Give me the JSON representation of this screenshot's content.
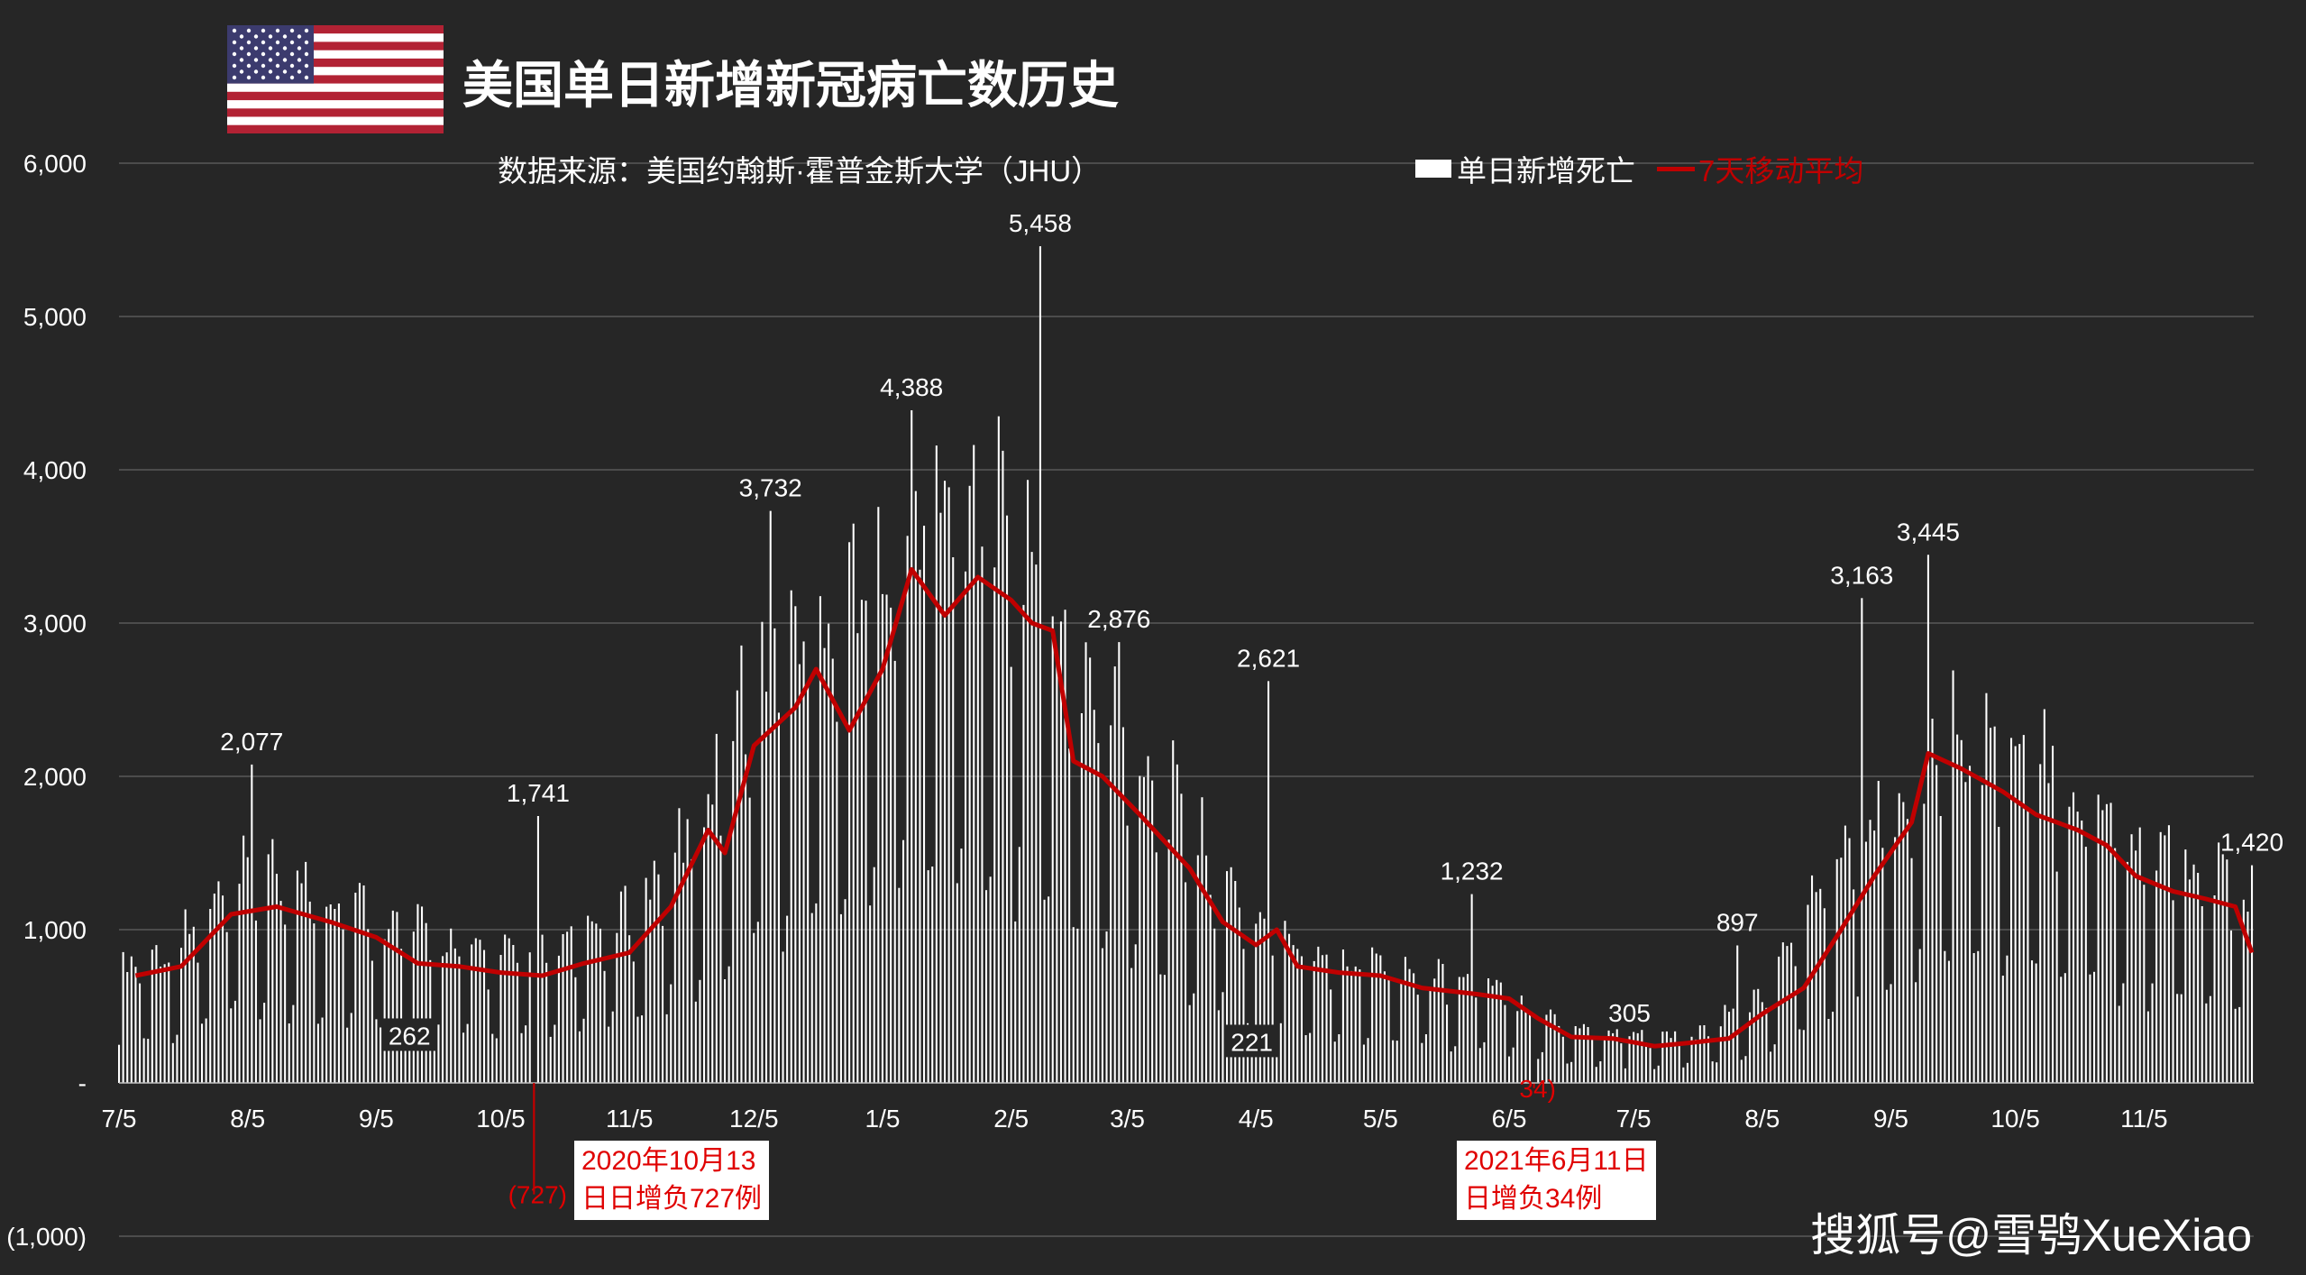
{
  "header": {
    "title": "美国单日新增新冠病亡数历史",
    "source": "数据来源：美国约翰斯·霍普金斯大学（JHU）",
    "flag": "us-flag-icon"
  },
  "legend": {
    "bars_label": "单日新增死亡",
    "line_label": "7天移动平均"
  },
  "callouts": {
    "negative_1": {
      "lines": [
        "2020年10月13",
        "日日增负727例"
      ],
      "value_label": "(727)"
    },
    "negative_2": {
      "lines": [
        "2021年6月11日",
        "日增负34例"
      ],
      "value_label": "34)"
    }
  },
  "watermark": "搜狐号@雪鸮XueXiao",
  "colors": {
    "background": "#262626",
    "bars": "#ffffff",
    "moving_average": "#c00000",
    "grid": "#595959",
    "callout_text": "#e00000"
  },
  "chart_data": {
    "type": "bar",
    "title": "美国单日新增新冠病亡数历史",
    "xlabel": "",
    "ylabel": "",
    "ylim": [
      -1000,
      6000
    ],
    "yticks": [
      -1000,
      0,
      1000,
      2000,
      3000,
      4000,
      5000,
      6000
    ],
    "ytick_labels": [
      "(1,000)",
      "-",
      "1,000",
      "2,000",
      "3,000",
      "4,000",
      "5,000",
      "6,000"
    ],
    "x_range": [
      "2020-07-05",
      "2021-12-01"
    ],
    "xtick_labels": [
      "7/5",
      "8/5",
      "9/5",
      "10/5",
      "11/5",
      "12/5",
      "1/5",
      "2/5",
      "3/5",
      "4/5",
      "5/5",
      "6/5",
      "7/5",
      "8/5",
      "9/5",
      "10/5",
      "11/5"
    ],
    "xtick_dates": [
      "2020-07-05",
      "2020-08-05",
      "2020-09-05",
      "2020-10-05",
      "2020-11-05",
      "2020-12-05",
      "2021-01-05",
      "2021-02-05",
      "2021-03-05",
      "2021-04-05",
      "2021-05-05",
      "2021-06-05",
      "2021-07-05",
      "2021-08-05",
      "2021-09-05",
      "2021-10-05",
      "2021-11-05"
    ],
    "grid": true,
    "legend_position": "top-right",
    "series": [
      {
        "name": "单日新增死亡",
        "kind": "bar",
        "weekly_profile": [
          0.45,
          1.15,
          1.25,
          1.2,
          1.15,
          0.95,
          0.4
        ],
        "trend_points": [
          [
            "2020-07-05",
            650
          ],
          [
            "2020-07-20",
            780
          ],
          [
            "2020-08-05",
            1150
          ],
          [
            "2020-08-20",
            1100
          ],
          [
            "2020-09-05",
            950
          ],
          [
            "2020-09-20",
            800
          ],
          [
            "2020-10-05",
            720
          ],
          [
            "2020-10-20",
            760
          ],
          [
            "2020-11-05",
            950
          ],
          [
            "2020-11-20",
            1400
          ],
          [
            "2020-12-05",
            2300
          ],
          [
            "2020-12-20",
            2600
          ],
          [
            "2021-01-05",
            3000
          ],
          [
            "2021-01-15",
            3350
          ],
          [
            "2021-02-01",
            3200
          ],
          [
            "2021-02-10",
            3000
          ],
          [
            "2021-02-20",
            2300
          ],
          [
            "2021-03-05",
            2000
          ],
          [
            "2021-03-20",
            1400
          ],
          [
            "2021-04-05",
            900
          ],
          [
            "2021-04-20",
            740
          ],
          [
            "2021-05-05",
            680
          ],
          [
            "2021-05-20",
            600
          ],
          [
            "2021-06-05",
            500
          ],
          [
            "2021-06-20",
            320
          ],
          [
            "2021-07-05",
            260
          ],
          [
            "2021-07-20",
            260
          ],
          [
            "2021-08-05",
            480
          ],
          [
            "2021-08-20",
            1100
          ],
          [
            "2021-09-05",
            1600
          ],
          [
            "2021-09-20",
            2050
          ],
          [
            "2021-10-05",
            1800
          ],
          [
            "2021-10-20",
            1650
          ],
          [
            "2021-11-05",
            1350
          ],
          [
            "2021-11-20",
            1200
          ],
          [
            "2021-12-01",
            1000
          ]
        ],
        "labeled_points": [
          {
            "date": "2020-08-06",
            "value": 2077,
            "label": "2,077",
            "pos": "above"
          },
          {
            "date": "2020-09-13",
            "value": 262,
            "label": "262",
            "pos": "box"
          },
          {
            "date": "2020-10-14",
            "value": 1741,
            "label": "1,741",
            "pos": "above"
          },
          {
            "date": "2020-10-13",
            "value": -727,
            "label": "(727)",
            "pos": "below"
          },
          {
            "date": "2020-12-09",
            "value": 3732,
            "label": "3,732",
            "pos": "above"
          },
          {
            "date": "2021-01-12",
            "value": 4388,
            "label": "4,388",
            "pos": "above"
          },
          {
            "date": "2021-02-12",
            "value": 5458,
            "label": "5,458",
            "pos": "above"
          },
          {
            "date": "2021-03-03",
            "value": 2876,
            "label": "2,876",
            "pos": "above"
          },
          {
            "date": "2021-04-08",
            "value": 2621,
            "label": "2,621",
            "pos": "above"
          },
          {
            "date": "2021-04-04",
            "value": 221,
            "label": "221",
            "pos": "box"
          },
          {
            "date": "2021-05-27",
            "value": 1232,
            "label": "1,232",
            "pos": "above"
          },
          {
            "date": "2021-06-11",
            "value": -34,
            "label": "34)",
            "pos": "below"
          },
          {
            "date": "2021-07-04",
            "value": 305,
            "label": "305",
            "pos": "above"
          },
          {
            "date": "2021-07-30",
            "value": 897,
            "label": "897",
            "pos": "above"
          },
          {
            "date": "2021-08-29",
            "value": 3163,
            "label": "3,163",
            "pos": "above"
          },
          {
            "date": "2021-09-14",
            "value": 3445,
            "label": "3,445",
            "pos": "above"
          },
          {
            "date": "2021-12-01",
            "value": 1420,
            "label": "1,420",
            "pos": "above"
          }
        ]
      },
      {
        "name": "7天移动平均",
        "kind": "line",
        "points": [
          [
            "2020-07-09",
            700
          ],
          [
            "2020-07-20",
            760
          ],
          [
            "2020-08-01",
            1100
          ],
          [
            "2020-08-12",
            1150
          ],
          [
            "2020-08-25",
            1050
          ],
          [
            "2020-09-05",
            950
          ],
          [
            "2020-09-15",
            780
          ],
          [
            "2020-09-25",
            760
          ],
          [
            "2020-10-05",
            720
          ],
          [
            "2020-10-15",
            700
          ],
          [
            "2020-10-25",
            780
          ],
          [
            "2020-11-05",
            850
          ],
          [
            "2020-11-15",
            1150
          ],
          [
            "2020-11-24",
            1650
          ],
          [
            "2020-11-28",
            1500
          ],
          [
            "2020-12-05",
            2200
          ],
          [
            "2020-12-15",
            2450
          ],
          [
            "2020-12-20",
            2700
          ],
          [
            "2020-12-28",
            2300
          ],
          [
            "2021-01-05",
            2700
          ],
          [
            "2021-01-12",
            3350
          ],
          [
            "2021-01-20",
            3050
          ],
          [
            "2021-01-28",
            3300
          ],
          [
            "2021-02-05",
            3150
          ],
          [
            "2021-02-10",
            3000
          ],
          [
            "2021-02-15",
            2950
          ],
          [
            "2021-02-20",
            2100
          ],
          [
            "2021-02-27",
            2000
          ],
          [
            "2021-03-08",
            1750
          ],
          [
            "2021-03-20",
            1400
          ],
          [
            "2021-03-28",
            1050
          ],
          [
            "2021-04-05",
            900
          ],
          [
            "2021-04-10",
            1000
          ],
          [
            "2021-04-15",
            760
          ],
          [
            "2021-04-25",
            720
          ],
          [
            "2021-05-05",
            700
          ],
          [
            "2021-05-15",
            620
          ],
          [
            "2021-05-28",
            580
          ],
          [
            "2021-06-05",
            550
          ],
          [
            "2021-06-12",
            420
          ],
          [
            "2021-06-20",
            300
          ],
          [
            "2021-06-30",
            290
          ],
          [
            "2021-07-10",
            240
          ],
          [
            "2021-07-18",
            260
          ],
          [
            "2021-07-28",
            290
          ],
          [
            "2021-08-05",
            450
          ],
          [
            "2021-08-15",
            620
          ],
          [
            "2021-08-24",
            1000
          ],
          [
            "2021-09-01",
            1350
          ],
          [
            "2021-09-10",
            1700
          ],
          [
            "2021-09-14",
            2150
          ],
          [
            "2021-09-22",
            2050
          ],
          [
            "2021-10-02",
            1900
          ],
          [
            "2021-10-10",
            1750
          ],
          [
            "2021-10-20",
            1650
          ],
          [
            "2021-10-27",
            1550
          ],
          [
            "2021-11-03",
            1350
          ],
          [
            "2021-11-12",
            1250
          ],
          [
            "2021-11-20",
            1200
          ],
          [
            "2021-11-27",
            1150
          ],
          [
            "2021-12-01",
            850
          ]
        ]
      }
    ]
  }
}
